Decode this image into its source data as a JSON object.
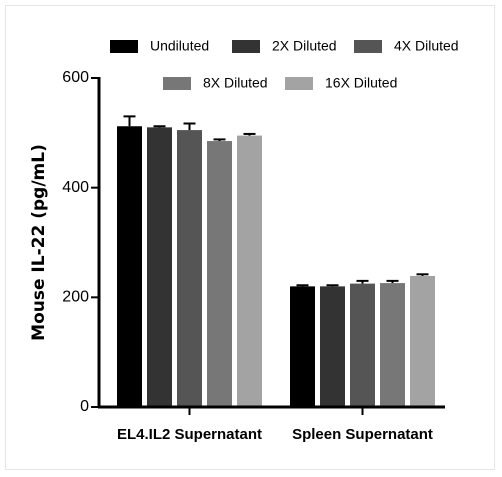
{
  "chart_data": {
    "type": "bar",
    "categories": [
      "EL4.IL2 Supernatant",
      "Spleen Supernatant"
    ],
    "series": [
      {
        "name": "Undiluted",
        "color": "#000000",
        "values": [
          512,
          220
        ],
        "errors": [
          18,
          2
        ]
      },
      {
        "name": "2X Diluted",
        "color": "#333333",
        "values": [
          510,
          220
        ],
        "errors": [
          2,
          2
        ]
      },
      {
        "name": "4X Diluted",
        "color": "#555555",
        "values": [
          505,
          225
        ],
        "errors": [
          12,
          5
        ]
      },
      {
        "name": "8X Diluted",
        "color": "#777777",
        "values": [
          485,
          226
        ],
        "errors": [
          3,
          4
        ]
      },
      {
        "name": "16X Diluted",
        "color": "#a3a3a3",
        "values": [
          495,
          239
        ],
        "errors": [
          3,
          3
        ]
      }
    ],
    "ylabel": "Mouse IL-22 (pg/mL)",
    "xlabel": "",
    "ylim": [
      0,
      600
    ],
    "yticks": [
      0,
      200,
      400,
      600
    ],
    "grid": false,
    "legend_position": "top"
  }
}
